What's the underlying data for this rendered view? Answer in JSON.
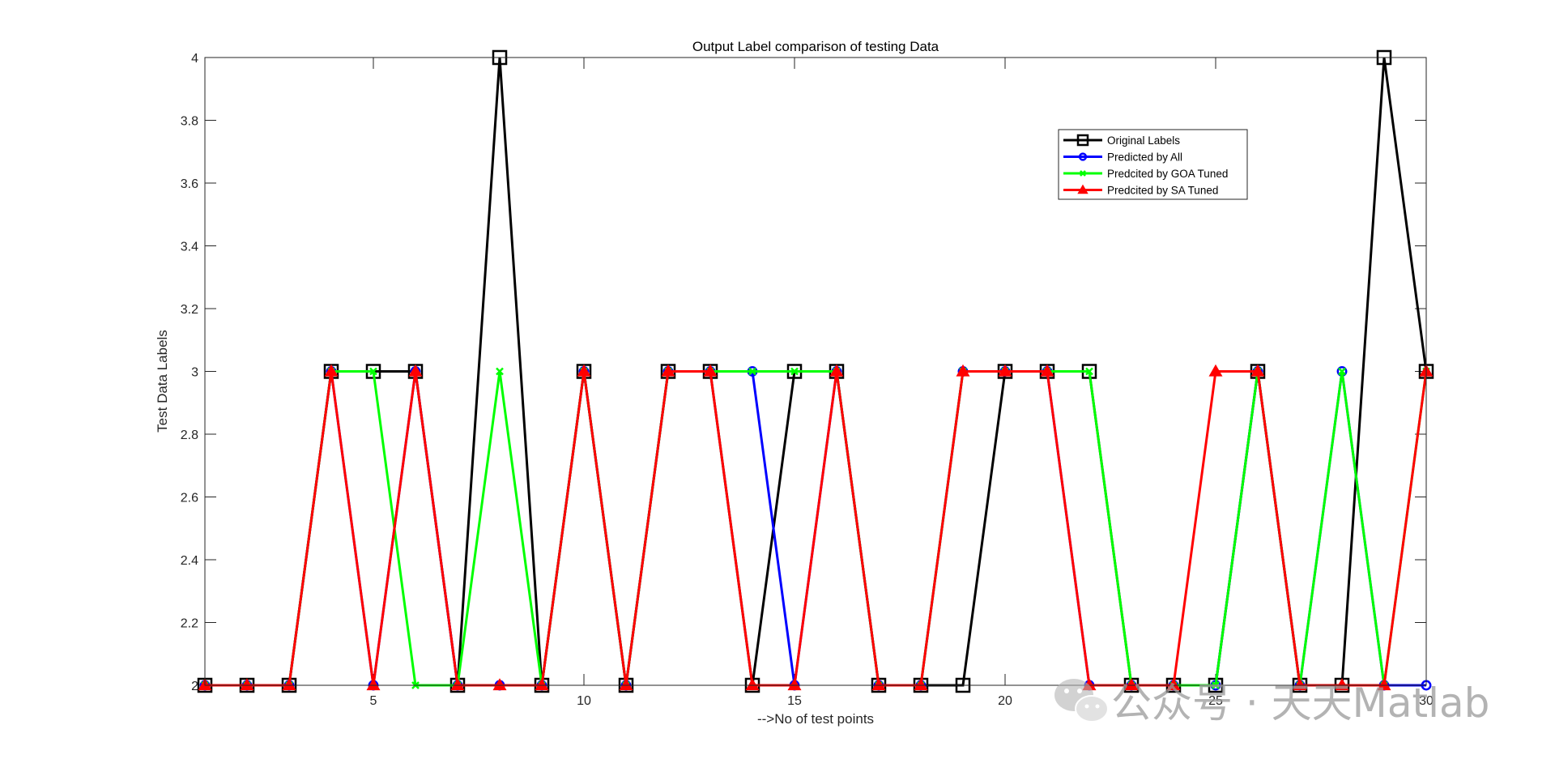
{
  "chart_data": {
    "type": "line",
    "title": "Output Label comparison of testing Data",
    "xlabel": "-->No of test points",
    "ylabel": "Test Data Labels",
    "xlim": [
      1,
      30
    ],
    "ylim": [
      2,
      4
    ],
    "xticks": [
      5,
      10,
      15,
      20,
      25,
      30
    ],
    "yticks": [
      2,
      2.2,
      2.4,
      2.6,
      2.8,
      3,
      3.2,
      3.4,
      3.6,
      3.8,
      4
    ],
    "ytick_labels": [
      "2",
      "2.2",
      "2.4",
      "2.6",
      "2.8",
      "3",
      "3.2",
      "3.4",
      "3.6",
      "3.8",
      "4"
    ],
    "grid": false,
    "legend_position": "top-right",
    "x": [
      1,
      2,
      3,
      4,
      5,
      6,
      7,
      8,
      9,
      10,
      11,
      12,
      13,
      14,
      15,
      16,
      17,
      18,
      19,
      20,
      21,
      22,
      23,
      24,
      25,
      26,
      27,
      28,
      29,
      30
    ],
    "series": [
      {
        "name": "Original Labels",
        "color": "#000000",
        "marker": "square",
        "values": [
          2,
          2,
          2,
          3,
          3,
          3,
          2,
          4,
          2,
          3,
          2,
          3,
          3,
          2,
          3,
          3,
          2,
          2,
          2,
          3,
          3,
          3,
          2,
          2,
          2,
          3,
          2,
          2,
          4,
          3
        ]
      },
      {
        "name": "Predicted by All",
        "color": "#0000ff",
        "marker": "circle",
        "values": [
          2,
          2,
          2,
          3,
          2,
          3,
          2,
          2,
          2,
          3,
          2,
          3,
          3,
          3,
          2,
          3,
          2,
          2,
          3,
          3,
          3,
          2,
          2,
          2,
          2,
          3,
          2,
          3,
          2,
          2
        ]
      },
      {
        "name": "Predcited by GOA Tuned",
        "color": "#00ff00",
        "marker": "x",
        "values": [
          2,
          2,
          2,
          3,
          3,
          2,
          2,
          3,
          2,
          3,
          2,
          3,
          3,
          3,
          3,
          3,
          2,
          2,
          3,
          3,
          3,
          3,
          2,
          2,
          2,
          3,
          2,
          3,
          2,
          3
        ]
      },
      {
        "name": "Predcited by SA Tuned",
        "color": "#ff0000",
        "marker": "triangle",
        "values": [
          2,
          2,
          2,
          3,
          2,
          3,
          2,
          2,
          2,
          3,
          2,
          3,
          3,
          2,
          2,
          3,
          2,
          2,
          3,
          3,
          3,
          2,
          2,
          2,
          3,
          3,
          2,
          2,
          2,
          3
        ]
      }
    ]
  },
  "watermark": {
    "text": "公众号 · 天天Matlab",
    "icon": "wechat-icon"
  }
}
